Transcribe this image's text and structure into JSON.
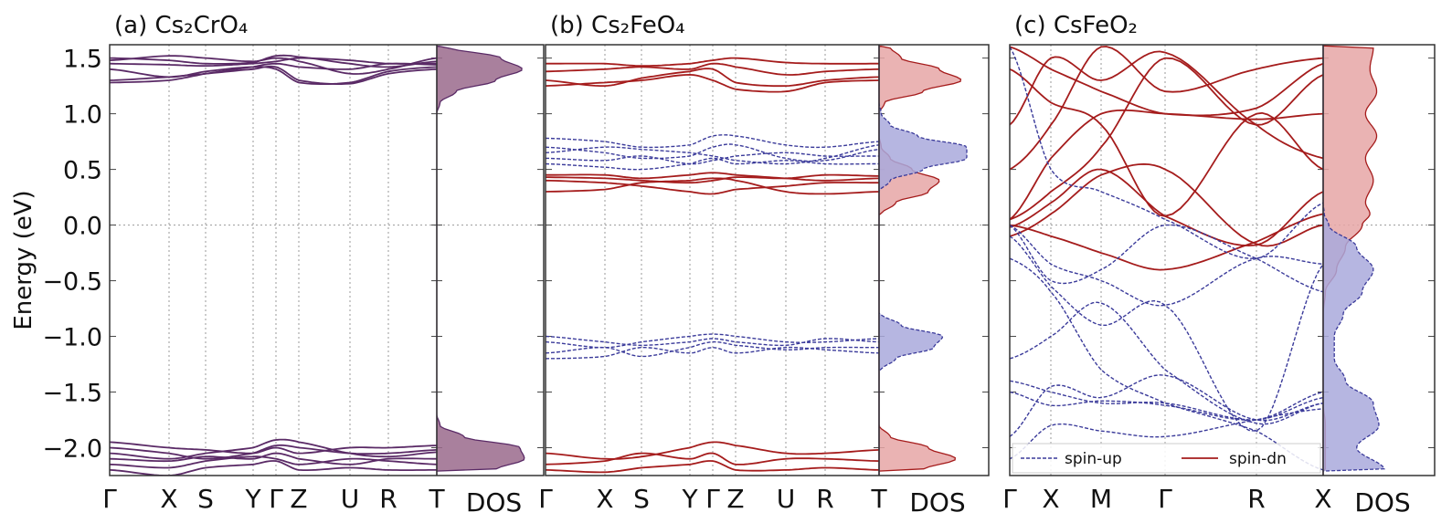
{
  "ylabel": "Energy (eV)",
  "colors": {
    "combined_line": "#5a2a66",
    "combined_fill": "#9a6a8c",
    "up_line": "#3a3a9a",
    "up_fill": "#a9a9dc",
    "dn_line": "#a51c1c",
    "dn_fill": "#e6a6a6"
  },
  "chart_data": [
    {
      "type": "line",
      "title": "(a) Cs₂CrO₄",
      "xticks": [
        "Γ",
        "X",
        "S",
        "Y",
        "Γ",
        "Z",
        "U",
        "R",
        "T"
      ],
      "dos_label": "DOS",
      "ylim": [
        -2.25,
        1.62
      ],
      "yticks": [
        -2.0,
        -1.5,
        -1.0,
        -0.5,
        0.0,
        0.5,
        1.0,
        1.5
      ],
      "grid": true,
      "bands": [
        {
          "spin": "combined",
          "E": [
            [
              1.45,
              1.44,
              1.43,
              1.45,
              1.47,
              1.5,
              1.48,
              1.45,
              1.45
            ],
            [
              1.4,
              1.33,
              1.38,
              1.42,
              1.4,
              1.28,
              1.28,
              1.38,
              1.42
            ],
            [
              1.3,
              1.33,
              1.36,
              1.4,
              1.42,
              1.3,
              1.27,
              1.36,
              1.4
            ],
            [
              1.5,
              1.48,
              1.45,
              1.46,
              1.52,
              1.51,
              1.45,
              1.42,
              1.47
            ],
            [
              1.48,
              1.52,
              1.5,
              1.47,
              1.5,
              1.47,
              1.36,
              1.4,
              1.5
            ],
            [
              1.28,
              1.3,
              1.36,
              1.42,
              1.45,
              1.42,
              1.4,
              1.45,
              1.44
            ],
            [
              -2.0,
              -2.05,
              -2.1,
              -2.05,
              -1.98,
              -2.0,
              -2.05,
              -2.05,
              -2.02
            ],
            [
              -2.05,
              -2.1,
              -2.05,
              -2.0,
              -1.93,
              -1.95,
              -2.05,
              -2.08,
              -2.04
            ],
            [
              -2.1,
              -2.12,
              -2.08,
              -2.1,
              -2.05,
              -2.1,
              -2.15,
              -2.1,
              -2.1
            ],
            [
              -1.95,
              -2.0,
              -2.02,
              -2.05,
              -2.0,
              -2.05,
              -2.0,
              -2.0,
              -1.98
            ],
            [
              -2.15,
              -2.18,
              -2.12,
              -2.08,
              -2.1,
              -2.15,
              -2.1,
              -2.12,
              -2.15
            ],
            [
              -2.2,
              -2.25,
              -2.18,
              -2.15,
              -2.12,
              -2.2,
              -2.18,
              -2.2,
              -2.2
            ]
          ]
        }
      ],
      "dos_E": [
        -2.2,
        -2.1,
        -2.0,
        -1.9,
        -1.8,
        -1.7,
        1.0,
        1.1,
        1.2,
        1.3,
        1.4,
        1.5,
        1.6
      ],
      "dos": [
        {
          "spin": "combined",
          "values": [
            0.55,
            0.82,
            0.78,
            0.25,
            0.03,
            0,
            0,
            0.03,
            0.18,
            0.55,
            0.8,
            0.6,
            0.1
          ]
        }
      ]
    },
    {
      "type": "line",
      "title": "(b) Cs₂FeO₄",
      "xticks": [
        "Γ",
        "X",
        "S",
        "Y",
        "Γ",
        "Z",
        "U",
        "R",
        "T"
      ],
      "dos_label": "DOS",
      "ylim": [
        -2.25,
        1.62
      ],
      "grid": true,
      "bands": [
        {
          "spin": "spin-dn",
          "E": [
            [
              1.45,
              1.45,
              1.43,
              1.45,
              1.48,
              1.5,
              1.46,
              1.45,
              1.45
            ],
            [
              1.3,
              1.25,
              1.32,
              1.38,
              1.4,
              1.28,
              1.25,
              1.3,
              1.33
            ],
            [
              1.25,
              1.28,
              1.3,
              1.35,
              1.3,
              1.22,
              1.2,
              1.28,
              1.3
            ],
            [
              1.38,
              1.4,
              1.42,
              1.4,
              1.45,
              1.42,
              1.35,
              1.38,
              1.4
            ],
            [
              0.45,
              0.45,
              0.42,
              0.45,
              0.47,
              0.45,
              0.42,
              0.4,
              0.42
            ],
            [
              0.4,
              0.38,
              0.35,
              0.3,
              0.28,
              0.32,
              0.35,
              0.38,
              0.38
            ],
            [
              0.3,
              0.32,
              0.38,
              0.4,
              0.42,
              0.4,
              0.3,
              0.28,
              0.3
            ],
            [
              0.43,
              0.42,
              0.4,
              0.38,
              0.4,
              0.43,
              0.42,
              0.45,
              0.44
            ],
            [
              -2.05,
              -2.1,
              -2.08,
              -2.0,
              -1.95,
              -1.98,
              -2.05,
              -2.05,
              -2.02
            ],
            [
              -2.15,
              -2.12,
              -2.05,
              -2.1,
              -2.05,
              -2.15,
              -2.1,
              -2.1,
              -2.12
            ],
            [
              -2.2,
              -2.22,
              -2.18,
              -2.15,
              -2.12,
              -2.2,
              -2.2,
              -2.18,
              -2.2
            ]
          ]
        },
        {
          "spin": "spin-up",
          "E": [
            [
              0.78,
              0.75,
              0.7,
              0.72,
              0.8,
              0.8,
              0.72,
              0.7,
              0.75
            ],
            [
              0.7,
              0.65,
              0.6,
              0.62,
              0.7,
              0.72,
              0.6,
              0.58,
              0.68
            ],
            [
              0.6,
              0.58,
              0.62,
              0.55,
              0.58,
              0.62,
              0.65,
              0.62,
              0.62
            ],
            [
              0.65,
              0.7,
              0.68,
              0.65,
              0.62,
              0.58,
              0.55,
              0.6,
              0.72
            ],
            [
              0.55,
              0.52,
              0.5,
              0.55,
              0.6,
              0.55,
              0.58,
              0.55,
              0.55
            ],
            [
              -1.05,
              -1.1,
              -1.05,
              -1.0,
              -0.98,
              -1.0,
              -1.05,
              -1.05,
              -1.02
            ],
            [
              -1.15,
              -1.1,
              -1.18,
              -1.1,
              -1.05,
              -1.08,
              -1.12,
              -1.1,
              -1.1
            ],
            [
              -1.2,
              -1.18,
              -1.1,
              -1.15,
              -1.1,
              -1.15,
              -1.1,
              -1.12,
              -1.15
            ],
            [
              -1.0,
              -1.05,
              -1.08,
              -1.05,
              -1.02,
              -1.05,
              -1.08,
              -1.02,
              -1.05
            ]
          ]
        }
      ],
      "dos_E": [
        -2.2,
        -2.1,
        -2.0,
        -1.9,
        -1.8,
        -1.3,
        -1.2,
        -1.1,
        -1.0,
        -0.9,
        -0.8,
        0.1,
        0.2,
        0.3,
        0.4,
        0.5,
        0.6,
        0.7,
        0.8,
        0.9,
        1.0,
        1.1,
        1.2,
        1.3,
        1.4,
        1.5,
        1.6
      ],
      "dos": [
        {
          "spin": "spin-dn",
          "values": [
            0.4,
            0.7,
            0.45,
            0.1,
            0,
            0,
            0,
            0,
            0,
            0,
            0,
            0.02,
            0.15,
            0.45,
            0.55,
            0.3,
            0.1,
            0.02,
            0,
            0,
            0,
            0.05,
            0.4,
            0.75,
            0.55,
            0.2,
            0.1
          ]
        },
        {
          "spin": "spin-up",
          "values": [
            0,
            0,
            0,
            0,
            0,
            0.02,
            0.15,
            0.5,
            0.58,
            0.2,
            0.02,
            0,
            0,
            0,
            0.1,
            0.4,
            0.8,
            0.8,
            0.35,
            0.1,
            0.02,
            0,
            0,
            0,
            0,
            0,
            0
          ]
        }
      ]
    },
    {
      "type": "line",
      "title": "(c) CsFeO₂",
      "xticks": [
        "Γ",
        "X",
        "M",
        "Γ",
        "R",
        "X"
      ],
      "dos_label": "DOS",
      "ylim": [
        -2.25,
        1.62
      ],
      "grid": true,
      "legend": {
        "placement": "bottom",
        "entries": [
          "spin-up",
          "spin-dn"
        ]
      },
      "bands": [
        {
          "spin": "spin-dn",
          "E": [
            [
              0.05,
              0.6,
              1.0,
              1.0,
              0.95,
              1.0
            ],
            [
              0.05,
              0.3,
              0.7,
              1.5,
              0.9,
              1.35
            ],
            [
              -0.02,
              0.2,
              0.5,
              0.08,
              -0.18,
              0.3
            ],
            [
              0.0,
              -0.1,
              -0.25,
              -0.4,
              -0.15,
              0.1
            ],
            [
              1.4,
              1.1,
              0.9,
              0.08,
              1.0,
              0.5
            ],
            [
              1.6,
              1.4,
              1.2,
              1.0,
              1.05,
              1.45
            ],
            [
              0.9,
              1.5,
              1.3,
              1.55,
              0.9,
              0.6
            ],
            [
              0.5,
              0.9,
              1.6,
              1.2,
              1.4,
              1.5
            ],
            [
              -0.1,
              0.1,
              0.45,
              0.5,
              -0.17,
              0.0
            ]
          ]
        },
        {
          "spin": "spin-up",
          "E": [
            [
              0.0,
              -0.35,
              -0.5,
              -0.72,
              -0.3,
              -0.35
            ],
            [
              0.0,
              -0.5,
              -0.4,
              0.0,
              -0.3,
              -0.6
            ],
            [
              -0.1,
              -0.55,
              -0.9,
              -0.72,
              -1.85,
              -0.35
            ],
            [
              -1.4,
              -1.5,
              -1.6,
              -1.6,
              -1.75,
              -1.55
            ],
            [
              -1.2,
              -1.0,
              -0.7,
              -1.3,
              -1.78,
              -1.6
            ],
            [
              -1.5,
              -1.62,
              -1.58,
              -1.62,
              -1.75,
              -1.5
            ],
            [
              -1.9,
              -1.45,
              -1.55,
              -1.35,
              -1.75,
              -1.6
            ],
            [
              -2.1,
              -1.8,
              -1.85,
              -1.9,
              -1.75,
              -1.65
            ],
            [
              -0.3,
              -0.6,
              -1.3,
              -1.6,
              -1.85,
              -2.2
            ],
            [
              1.6,
              0.5,
              0.3,
              0.05,
              -0.3,
              0.2
            ]
          ]
        }
      ],
      "dos_E": [
        -2.2,
        -2.0,
        -1.8,
        -1.6,
        -1.4,
        -1.2,
        -1.0,
        -0.8,
        -0.6,
        -0.4,
        -0.2,
        0.0,
        0.1,
        0.2,
        0.4,
        0.6,
        0.8,
        1.0,
        1.2,
        1.4,
        1.6
      ],
      "dos": [
        {
          "spin": "spin-dn",
          "values": [
            0.02,
            0.02,
            0.02,
            0,
            0,
            0,
            0,
            0,
            0.02,
            0.12,
            0.2,
            0.35,
            0.42,
            0.38,
            0.45,
            0.38,
            0.48,
            0.38,
            0.48,
            0.42,
            0.45
          ]
        },
        {
          "spin": "spin-up",
          "values": [
            0.55,
            0.3,
            0.5,
            0.45,
            0.2,
            0.1,
            0.1,
            0.18,
            0.35,
            0.45,
            0.3,
            0.05,
            0.01,
            0,
            0,
            0,
            0,
            0,
            0,
            0,
            0
          ]
        }
      ]
    }
  ]
}
